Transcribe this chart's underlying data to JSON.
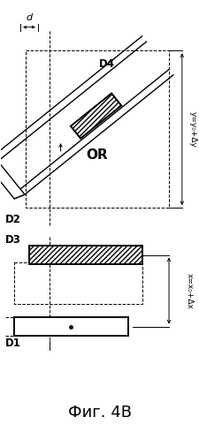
{
  "title": "Фиг. 4В",
  "background_color": "#ffffff",
  "fig_width": 2.26,
  "fig_height": 4.98,
  "dpi": 100,
  "label_d": "d",
  "label_D4": "D4",
  "label_D2": "D2",
  "label_D3": "D3",
  "label_D1": "D1",
  "label_OR": "OR",
  "label_y": "y=y₀+Δy",
  "label_x": "x=x₀+Δx"
}
